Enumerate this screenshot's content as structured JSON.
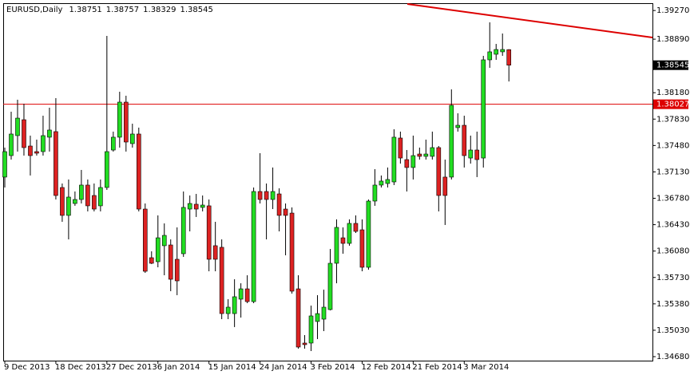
{
  "chart_data": {
    "type": "candlestick",
    "title": "EURUSD,Daily",
    "categories": [
      "9 Dec 2013",
      null,
      null,
      null,
      null,
      null,
      null,
      null,
      "18 Dec 2013",
      null,
      null,
      null,
      null,
      null,
      null,
      null,
      "27 Dec 2013",
      null,
      null,
      null,
      null,
      null,
      null,
      null,
      "6 Jan 2014",
      null,
      null,
      null,
      null,
      null,
      null,
      null,
      "15 Jan 2014",
      null,
      null,
      null,
      null,
      null,
      null,
      null,
      "24 Jan 2014",
      null,
      null,
      null,
      null,
      null,
      null,
      null,
      "3 Feb 2014",
      null,
      null,
      null,
      null,
      null,
      null,
      null,
      "12 Feb 2014",
      null,
      null,
      null,
      null,
      null,
      null,
      null,
      "21 Feb 2014",
      null,
      null,
      null,
      null,
      null,
      null,
      null,
      "3 Mar 2014",
      null,
      null,
      null,
      null,
      null,
      null,
      null
    ],
    "open": [
      1.37061,
      1.37346,
      1.37611,
      1.37822,
      1.37473,
      1.37399,
      1.37399,
      1.3759,
      1.37664,
      1.36923,
      1.36553,
      1.36711,
      1.36764,
      1.36955,
      1.36817,
      1.3668,
      1.36923,
      1.3742,
      1.3759,
      1.38055,
      1.37505,
      1.37632,
      1.36637,
      1.35992,
      1.35939,
      1.36151,
      1.36161,
      1.35971,
      1.36045,
      1.36637,
      1.36701,
      1.36659,
      1.3668,
      1.36151,
      1.3613,
      1.35251,
      1.35251,
      1.35442,
      1.35579,
      1.3541,
      1.3687,
      1.3687,
      1.36764,
      1.36838,
      1.36637,
      1.36584,
      1.35579,
      1.3486,
      1.3486,
      1.35146,
      1.35177,
      1.35304,
      1.35918,
      1.36256,
      1.36182,
      1.36447,
      1.36362,
      1.35865,
      1.36743,
      1.36955,
      1.36976,
      1.36997,
      1.37579,
      1.37293,
      1.37188,
      1.37367,
      1.37336,
      1.37336,
      1.37452,
      1.37061,
      1.37061,
      1.37717,
      1.37748,
      1.37314,
      1.3742,
      1.37314,
      1.38616,
      1.3869,
      1.38722,
      1.38751
    ],
    "high": [
      1.37452,
      1.37928,
      1.38087,
      1.38034,
      1.37611,
      1.37558,
      1.37875,
      1.37981,
      1.38108,
      1.36976,
      1.37029,
      1.3687,
      1.37156,
      1.37029,
      1.36976,
      1.37029,
      1.38933,
      1.37664,
      1.38193,
      1.3814,
      1.37769,
      1.37717,
      1.36711,
      1.36077,
      1.36553,
      1.36447,
      1.36235,
      1.36394,
      1.3687,
      1.36817,
      1.36838,
      1.36817,
      1.36764,
      1.36468,
      1.36235,
      1.35442,
      1.35706,
      1.35653,
      1.35759,
      1.36923,
      1.37378,
      1.36976,
      1.37188,
      1.36912,
      1.36711,
      1.36659,
      1.35759,
      1.34966,
      1.35357,
      1.35495,
      1.35569,
      1.36108,
      1.365,
      1.36394,
      1.365,
      1.36553,
      1.365,
      1.36764,
      1.37166,
      1.37082,
      1.37188,
      1.37695,
      1.37664,
      1.3742,
      1.37611,
      1.37452,
      1.37558,
      1.37664,
      1.37473,
      1.37293,
      1.38224,
      1.37907,
      1.37875,
      1.37611,
      1.37664,
      1.38669,
      1.39113,
      1.38827,
      1.38965,
      1.38757
    ],
    "low": [
      1.36923,
      1.37293,
      1.37399,
      1.37346,
      1.37082,
      1.37346,
      1.37346,
      1.37399,
      1.36764,
      1.36468,
      1.36235,
      1.3668,
      1.36711,
      1.36606,
      1.36606,
      1.36606,
      1.36891,
      1.37399,
      1.37452,
      1.37399,
      1.37452,
      1.36606,
      1.35791,
      1.35908,
      1.35865,
      1.35759,
      1.35548,
      1.35495,
      1.36003,
      1.36341,
      1.36532,
      1.36606,
      1.35812,
      1.35812,
      1.35177,
      1.35177,
      1.35072,
      1.35198,
      1.35389,
      1.35389,
      1.36711,
      1.36235,
      1.36637,
      1.36341,
      1.36024,
      1.35516,
      1.34786,
      1.34786,
      1.34754,
      1.34913,
      1.35019,
      1.35294,
      1.35653,
      1.36045,
      1.36151,
      1.3632,
      1.35812,
      1.35833,
      1.3668,
      1.36923,
      1.36923,
      1.36955,
      1.3724,
      1.3687,
      1.37029,
      1.37293,
      1.37293,
      1.37293,
      1.36606,
      1.36426,
      1.37029,
      1.37664,
      1.37188,
      1.3724,
      1.37061,
      1.37188,
      1.3851,
      1.38616,
      1.38669,
      1.38329
    ],
    "close": [
      1.37399,
      1.37632,
      1.37843,
      1.37452,
      1.37346,
      1.37378,
      1.37611,
      1.37685,
      1.36817,
      1.36553,
      1.36796,
      1.36764,
      1.36955,
      1.3668,
      1.36637,
      1.36923,
      1.37399,
      1.3759,
      1.38055,
      1.37526,
      1.37632,
      1.36637,
      1.35812,
      1.35918,
      1.36256,
      1.36288,
      1.35706,
      1.35685,
      1.36659,
      1.36711,
      1.36637,
      1.3669,
      1.35971,
      1.35971,
      1.35251,
      1.35336,
      1.35474,
      1.35579,
      1.3541,
      1.3687,
      1.36764,
      1.36764,
      1.3687,
      1.36553,
      1.36553,
      1.35548,
      1.34807,
      1.34839,
      1.3522,
      1.35251,
      1.35336,
      1.35918,
      1.36394,
      1.36182,
      1.36447,
      1.36341,
      1.35865,
      1.36743,
      1.36955,
      1.37008,
      1.37029,
      1.3759,
      1.37314,
      1.37188,
      1.37346,
      1.37336,
      1.37367,
      1.37452,
      1.36817,
      1.36817,
      1.38013,
      1.37748,
      1.37346,
      1.3742,
      1.37293,
      1.38616,
      1.38722,
      1.38753,
      1.38753,
      1.38545
    ],
    "up_color": "#22dd22",
    "down_color": "#dd2222",
    "ylim": [
      1.34627,
      1.39367
    ],
    "yticks": [
      {
        "value": 1.3927,
        "label": "1.39270"
      },
      {
        "value": 1.3889,
        "label": "1.38890"
      },
      {
        "value": 1.3818,
        "label": "1.38180"
      },
      {
        "value": 1.3783,
        "label": "1.37830"
      },
      {
        "value": 1.3748,
        "label": "1.37480"
      },
      {
        "value": 1.3713,
        "label": "1.37130"
      },
      {
        "value": 1.3678,
        "label": "1.36780"
      },
      {
        "value": 1.3643,
        "label": "1.36430"
      },
      {
        "value": 1.3608,
        "label": "1.36080"
      },
      {
        "value": 1.3573,
        "label": "1.35730"
      },
      {
        "value": 1.3538,
        "label": "1.35380"
      },
      {
        "value": 1.3503,
        "label": "1.35030"
      },
      {
        "value": 1.3468,
        "label": "1.34680"
      }
    ],
    "hline": {
      "value": 1.38027,
      "color": "#dd0000"
    }
  }
}
